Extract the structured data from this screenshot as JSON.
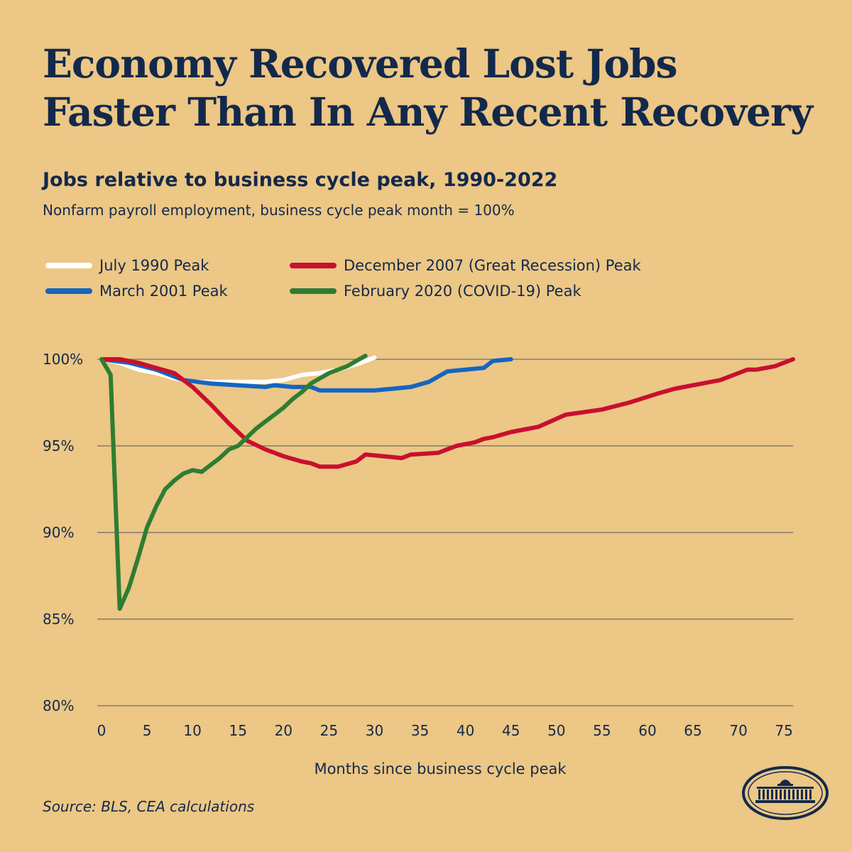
{
  "title_line1": "Economy Recovered Lost Jobs",
  "title_line2": "Faster Than In Any Recent Recovery",
  "subtitle": "Jobs relative to business cycle peak, 1990-2022",
  "note": "Nonfarm payroll employment, business cycle peak month = 100%",
  "source": "Source: BLS, CEA calculations",
  "logo_icon": "white-house-seal-icon",
  "colors": {
    "background": "#ecc785",
    "text": "#13294b",
    "grid": "#6e6e6e"
  },
  "chart_data": {
    "type": "line",
    "xlabel": "Months since business cycle peak",
    "ylabel": "",
    "xlim": [
      0,
      76
    ],
    "ylim": [
      80,
      100
    ],
    "x_ticks": [
      0,
      5,
      10,
      15,
      20,
      25,
      30,
      35,
      40,
      45,
      50,
      55,
      60,
      65,
      70,
      75
    ],
    "y_ticks": [
      {
        "value": 100,
        "label": "100%"
      },
      {
        "value": 95,
        "label": "95%"
      },
      {
        "value": 90,
        "label": "90%"
      },
      {
        "value": 85,
        "label": "85%"
      },
      {
        "value": 80,
        "label": "80%"
      }
    ],
    "series": [
      {
        "name": "July 1990 Peak",
        "color": "#ffffff",
        "x": [
          0,
          2,
          4,
          6,
          8,
          10,
          12,
          14,
          16,
          18,
          20,
          22,
          24,
          26,
          28,
          30
        ],
        "values": [
          100,
          99.8,
          99.4,
          99.2,
          98.9,
          98.7,
          98.7,
          98.7,
          98.7,
          98.7,
          98.8,
          99.1,
          99.2,
          99.4,
          99.7,
          100.1
        ]
      },
      {
        "name": "March 2001 Peak",
        "color": "#1565c0",
        "x": [
          0,
          3,
          6,
          9,
          12,
          15,
          18,
          19,
          21,
          23,
          24,
          26,
          28,
          30,
          32,
          34,
          36,
          38,
          40,
          42,
          43,
          45
        ],
        "values": [
          100,
          99.8,
          99.4,
          98.8,
          98.6,
          98.5,
          98.4,
          98.5,
          98.4,
          98.4,
          98.2,
          98.2,
          98.2,
          98.2,
          98.3,
          98.4,
          98.7,
          99.3,
          99.4,
          99.5,
          99.9,
          100
        ]
      },
      {
        "name": "December 2007 (Great Recession) Peak",
        "color": "#c8102e",
        "x": [
          0,
          2,
          4,
          6,
          8,
          10,
          12,
          14,
          16,
          18,
          20,
          22,
          23,
          24,
          26,
          28,
          29,
          31,
          33,
          34,
          37,
          39,
          41,
          42,
          43,
          45,
          48,
          51,
          55,
          58,
          61,
          63,
          66,
          68,
          70,
          71,
          72,
          74,
          76
        ],
        "values": [
          100,
          100,
          99.8,
          99.5,
          99.2,
          98.4,
          97.4,
          96.3,
          95.3,
          94.8,
          94.4,
          94.1,
          94.0,
          93.8,
          93.8,
          94.1,
          94.5,
          94.4,
          94.3,
          94.5,
          94.6,
          95.0,
          95.2,
          95.4,
          95.5,
          95.8,
          96.1,
          96.8,
          97.1,
          97.5,
          98.0,
          98.3,
          98.6,
          98.8,
          99.2,
          99.4,
          99.4,
          99.6,
          100
        ]
      },
      {
        "name": "February 2020 (COVID-19) Peak",
        "color": "#2e7d32",
        "x": [
          0,
          1,
          2,
          3,
          4,
          5,
          6,
          7,
          8,
          9,
          10,
          11,
          12,
          13,
          14,
          15,
          16,
          17,
          18,
          19,
          20,
          21,
          22,
          23,
          24,
          25,
          26,
          27,
          28,
          29
        ],
        "values": [
          100,
          99.1,
          85.6,
          86.8,
          88.5,
          90.3,
          91.5,
          92.5,
          93.0,
          93.4,
          93.6,
          93.5,
          93.9,
          94.3,
          94.8,
          95.0,
          95.5,
          96.0,
          96.4,
          96.8,
          97.2,
          97.7,
          98.1,
          98.6,
          98.9,
          99.2,
          99.4,
          99.6,
          99.9,
          100.2
        ]
      }
    ]
  }
}
